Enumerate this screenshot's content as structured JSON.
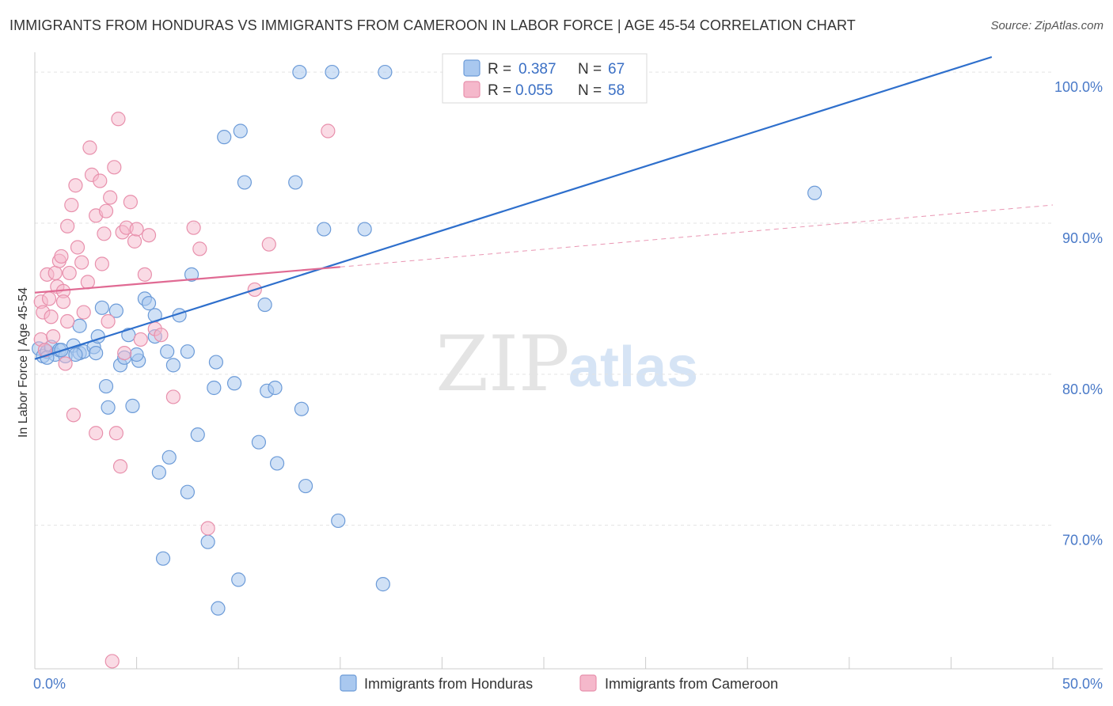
{
  "header": {
    "title": "IMMIGRANTS FROM HONDURAS VS IMMIGRANTS FROM CAMEROON IN LABOR FORCE | AGE 45-54 CORRELATION CHART",
    "source": "Source: ZipAtlas.com"
  },
  "watermark": {
    "zip": "ZIP",
    "atlas": "atlas"
  },
  "legend": {
    "r_label": "R =",
    "n_label": "N =",
    "rows": [
      {
        "r": "0.387",
        "n": "67"
      },
      {
        "r": "0.055",
        "n": "58"
      }
    ]
  },
  "colors": {
    "blue_fill": "#a9c8ef",
    "blue_stroke": "#6c9bd8",
    "blue_line": "#2e6fcc",
    "pink_fill": "#f5b8cb",
    "pink_stroke": "#e890ac",
    "pink_line": "#e06a93"
  },
  "chart_data": {
    "type": "scatter",
    "title": "IMMIGRANTS FROM HONDURAS VS IMMIGRANTS FROM CAMEROON IN LABOR FORCE | AGE 45-54 CORRELATION CHART",
    "ylabel": "In Labor Force | Age 45-54",
    "xlabel": "",
    "xlim": [
      0,
      50
    ],
    "ylim": [
      60.5,
      101
    ],
    "x_ticks": [
      {
        "value": 0,
        "label": "0.0%"
      },
      {
        "value": 50,
        "label": "50.0%"
      }
    ],
    "y_ticks": [
      {
        "value": 70,
        "label": "70.0%"
      },
      {
        "value": 80,
        "label": "80.0%"
      },
      {
        "value": 90,
        "label": "90.0%"
      },
      {
        "value": 100,
        "label": "100.0%"
      }
    ],
    "grid": true,
    "legend_position": "top-center",
    "series": [
      {
        "name": "Immigrants from Honduras",
        "r": 0.387,
        "n": 67,
        "trend": {
          "x": [
            0,
            47
          ],
          "y": [
            81.0,
            101.0
          ]
        },
        "points": [
          [
            0.2,
            81.7
          ],
          [
            0.4,
            81.2
          ],
          [
            0.6,
            81.5
          ],
          [
            0.8,
            81.8
          ],
          [
            1.0,
            81.3
          ],
          [
            1.2,
            81.6
          ],
          [
            1.5,
            81.2
          ],
          [
            1.9,
            81.9
          ],
          [
            2.2,
            81.4
          ],
          [
            2.4,
            81.5
          ],
          [
            2.2,
            83.2
          ],
          [
            2.9,
            81.8
          ],
          [
            3.1,
            82.5
          ],
          [
            3.3,
            84.4
          ],
          [
            4.0,
            84.2
          ],
          [
            4.6,
            82.6
          ],
          [
            4.2,
            80.6
          ],
          [
            4.4,
            81.1
          ],
          [
            5.1,
            80.9
          ],
          [
            5.0,
            81.3
          ],
          [
            3.5,
            79.2
          ],
          [
            3.6,
            77.8
          ],
          [
            4.8,
            77.9
          ],
          [
            5.4,
            85.0
          ],
          [
            5.6,
            84.7
          ],
          [
            5.9,
            83.9
          ],
          [
            5.9,
            82.5
          ],
          [
            6.5,
            81.5
          ],
          [
            6.8,
            80.6
          ],
          [
            7.1,
            83.9
          ],
          [
            7.5,
            81.5
          ],
          [
            7.7,
            86.6
          ],
          [
            8.9,
            80.8
          ],
          [
            8.8,
            79.1
          ],
          [
            9.8,
            79.4
          ],
          [
            11.3,
            84.6
          ],
          [
            11.4,
            78.9
          ],
          [
            11.8,
            79.1
          ],
          [
            11.0,
            75.5
          ],
          [
            11.9,
            74.1
          ],
          [
            13.1,
            77.7
          ],
          [
            13.3,
            72.6
          ],
          [
            14.9,
            70.3
          ],
          [
            17.1,
            66.1
          ],
          [
            16.2,
            89.6
          ],
          [
            14.2,
            89.6
          ],
          [
            12.8,
            92.7
          ],
          [
            10.3,
            92.7
          ],
          [
            9.3,
            95.7
          ],
          [
            10.1,
            96.1
          ],
          [
            13.0,
            100.0
          ],
          [
            14.6,
            100.0
          ],
          [
            17.2,
            100.0
          ],
          [
            22.0,
            100.0
          ],
          [
            38.3,
            92.0
          ],
          [
            8.0,
            76.0
          ],
          [
            6.6,
            74.5
          ],
          [
            6.1,
            73.5
          ],
          [
            7.5,
            72.2
          ],
          [
            8.5,
            68.9
          ],
          [
            6.3,
            67.8
          ],
          [
            10.0,
            66.4
          ],
          [
            9.0,
            64.5
          ],
          [
            1.3,
            81.6
          ],
          [
            3.0,
            81.4
          ],
          [
            0.6,
            81.1
          ],
          [
            2.0,
            81.3
          ]
        ]
      },
      {
        "name": "Immigrants from Cameroon",
        "r": 0.055,
        "n": 58,
        "trend": {
          "x": [
            0,
            15
          ],
          "y": [
            85.4,
            87.1
          ],
          "dashed_to": {
            "x": 50,
            "y": 91.2
          }
        },
        "points": [
          [
            0.3,
            82.3
          ],
          [
            0.5,
            81.6
          ],
          [
            0.3,
            84.8
          ],
          [
            0.4,
            84.1
          ],
          [
            0.6,
            86.6
          ],
          [
            0.8,
            83.8
          ],
          [
            0.9,
            82.5
          ],
          [
            1.0,
            86.7
          ],
          [
            1.1,
            85.8
          ],
          [
            1.2,
            87.5
          ],
          [
            1.3,
            87.8
          ],
          [
            1.4,
            85.5
          ],
          [
            1.4,
            84.8
          ],
          [
            1.6,
            89.8
          ],
          [
            1.7,
            86.7
          ],
          [
            1.8,
            91.2
          ],
          [
            1.5,
            80.7
          ],
          [
            1.9,
            77.3
          ],
          [
            1.6,
            83.5
          ],
          [
            2.1,
            88.4
          ],
          [
            2.3,
            87.4
          ],
          [
            2.4,
            84.1
          ],
          [
            2.0,
            92.5
          ],
          [
            2.6,
            86.1
          ],
          [
            2.7,
            95.0
          ],
          [
            2.8,
            93.2
          ],
          [
            3.0,
            90.5
          ],
          [
            3.3,
            87.3
          ],
          [
            3.4,
            89.3
          ],
          [
            3.6,
            83.5
          ],
          [
            3.5,
            90.8
          ],
          [
            3.2,
            92.8
          ],
          [
            3.9,
            93.7
          ],
          [
            3.7,
            91.7
          ],
          [
            4.1,
            96.9
          ],
          [
            4.3,
            89.4
          ],
          [
            4.5,
            89.7
          ],
          [
            4.7,
            91.4
          ],
          [
            4.9,
            88.8
          ],
          [
            5.0,
            89.6
          ],
          [
            5.2,
            82.3
          ],
          [
            5.4,
            86.6
          ],
          [
            5.6,
            89.2
          ],
          [
            5.9,
            83.0
          ],
          [
            6.2,
            82.6
          ],
          [
            6.8,
            78.5
          ],
          [
            7.8,
            89.7
          ],
          [
            8.1,
            88.3
          ],
          [
            8.5,
            69.8
          ],
          [
            10.8,
            85.6
          ],
          [
            11.5,
            88.6
          ],
          [
            14.4,
            96.1
          ],
          [
            4.4,
            81.4
          ],
          [
            4.0,
            76.1
          ],
          [
            4.2,
            73.9
          ],
          [
            3.0,
            76.1
          ],
          [
            3.8,
            61.0
          ],
          [
            0.7,
            85.0
          ]
        ]
      }
    ]
  }
}
